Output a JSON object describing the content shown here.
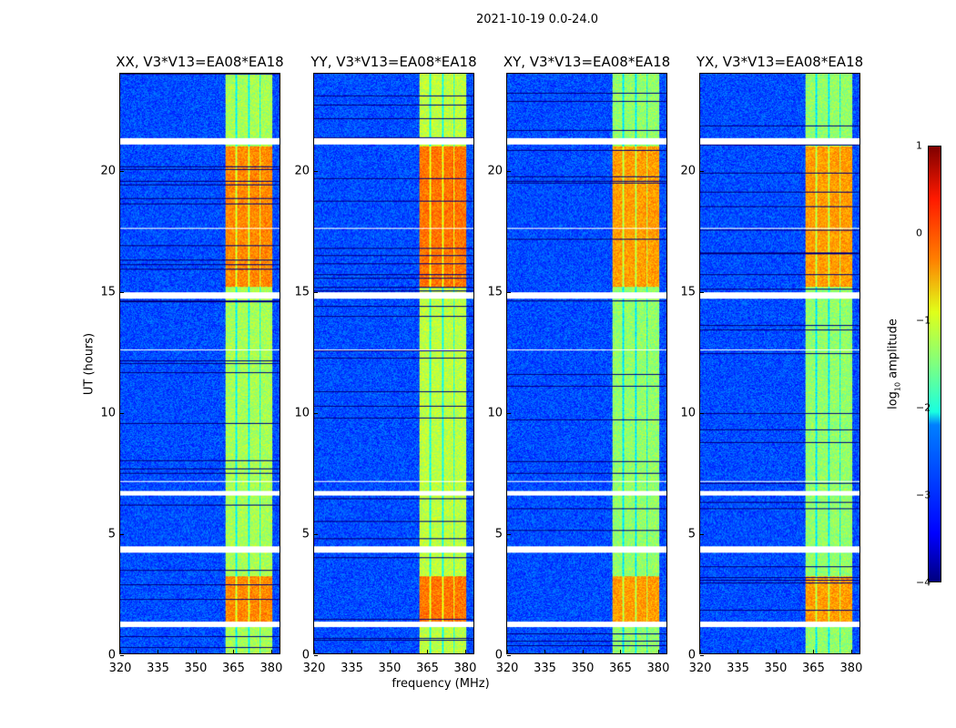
{
  "suptitle": "2021-10-19 0.0-24.0",
  "chart_data": {
    "type": "heatmap",
    "xlabel": "frequency (MHz)",
    "ylabel": "UT (hours)",
    "xlim": [
      320,
      384
    ],
    "ylim": [
      0,
      24
    ],
    "xticks": [
      "320",
      "335",
      "350",
      "365",
      "380"
    ],
    "yticks": [
      "0",
      "5",
      "10",
      "15",
      "20"
    ],
    "panels": [
      {
        "title": "XX, V3*V13=EA08*EA18",
        "band_level": -1.3,
        "burst_level": -0.3
      },
      {
        "title": "YY, V3*V13=EA08*EA18",
        "band_level": -1.2,
        "burst_level": -0.2
      },
      {
        "title": "XY, V3*V13=EA08*EA18",
        "band_level": -1.4,
        "burst_level": -0.4
      },
      {
        "title": "YX, V3*V13=EA08*EA18",
        "band_level": -1.4,
        "burst_level": -0.4
      }
    ],
    "rfi_band_mhz": [
      362,
      381
    ],
    "burst_hours": [
      [
        1.2,
        3.2
      ],
      [
        15.2,
        21.0
      ]
    ],
    "background_level": -3.0,
    "flagged_hours": [
      [
        1.1,
        1.35
      ],
      [
        4.2,
        4.45
      ],
      [
        6.55,
        6.75
      ],
      [
        14.7,
        14.95
      ],
      [
        21.1,
        21.35
      ],
      [
        12.55,
        12.6
      ],
      [
        7.1,
        7.15
      ],
      [
        17.6,
        17.65
      ]
    ],
    "colorbar": {
      "label": "log10 amplitude",
      "label_main": "log",
      "label_sub": "10",
      "label_rest": " amplitude",
      "range": [
        -4,
        1
      ],
      "ticks": [
        "1",
        "0",
        "−1",
        "−2",
        "−3",
        "−4"
      ],
      "colormap": "jet"
    }
  }
}
